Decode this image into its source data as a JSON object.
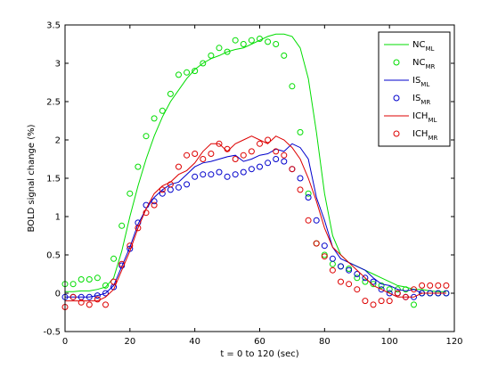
{
  "chart_data": {
    "type": "line",
    "xlabel": "t = 0 to 120 (sec)",
    "ylabel": "BOLD signal change (%)",
    "xlim": [
      0,
      120
    ],
    "ylim": [
      -0.5,
      3.5
    ],
    "x_ticks": [
      "0",
      "20",
      "40",
      "60",
      "80",
      "100",
      "120"
    ],
    "x_tick_values": [
      0,
      20,
      40,
      60,
      80,
      100,
      120
    ],
    "y_ticks": [
      "-0.5",
      "0",
      "0.5",
      "1",
      "1.5",
      "2",
      "2.5",
      "3",
      "3.5"
    ],
    "y_tick_values": [
      -0.5,
      0,
      0.5,
      1,
      1.5,
      2,
      2.5,
      3,
      3.5
    ],
    "grid": false,
    "legend_position": "top-right",
    "x": [
      0,
      2.5,
      5,
      7.5,
      10,
      12.5,
      15,
      17.5,
      20,
      22.5,
      25,
      27.5,
      30,
      32.5,
      35,
      37.5,
      40,
      42.5,
      45,
      47.5,
      50,
      52.5,
      55,
      57.5,
      60,
      62.5,
      65,
      67.5,
      70,
      72.5,
      75,
      77.5,
      80,
      82.5,
      85,
      87.5,
      90,
      92.5,
      95,
      97.5,
      100,
      102.5,
      105,
      107.5,
      110,
      112.5,
      115,
      117.5
    ],
    "series": [
      {
        "name": "NC",
        "subscript": "ML",
        "style": "line",
        "color": "#00dd00",
        "values": [
          0.02,
          0.02,
          0.03,
          0.03,
          0.05,
          0.08,
          0.2,
          0.55,
          1.0,
          1.4,
          1.75,
          2.05,
          2.3,
          2.5,
          2.65,
          2.8,
          2.92,
          3.0,
          3.06,
          3.1,
          3.15,
          3.18,
          3.2,
          3.25,
          3.3,
          3.35,
          3.38,
          3.38,
          3.35,
          3.2,
          2.8,
          2.1,
          1.3,
          0.75,
          0.5,
          0.4,
          0.35,
          0.3,
          0.25,
          0.2,
          0.15,
          0.1,
          0.08,
          0.05,
          0.05,
          0.03,
          0.02,
          0.02
        ]
      },
      {
        "name": "NC",
        "subscript": "MR",
        "style": "marker",
        "color": "#00dd00",
        "values": [
          0.12,
          0.12,
          0.18,
          0.18,
          0.2,
          0.1,
          0.45,
          0.88,
          1.3,
          1.65,
          2.05,
          2.28,
          2.38,
          2.6,
          2.85,
          2.88,
          2.9,
          3.0,
          3.1,
          3.2,
          3.15,
          3.3,
          3.25,
          3.3,
          3.32,
          3.28,
          3.25,
          3.1,
          2.7,
          2.1,
          1.3,
          0.65,
          0.5,
          0.38,
          0.35,
          0.32,
          0.2,
          0.15,
          0.12,
          0.1,
          0.05,
          0.05,
          0.05,
          -0.15,
          0.0,
          0.0,
          0.0,
          0.0
        ]
      },
      {
        "name": "IS",
        "subscript": "ML",
        "style": "line",
        "color": "#0000cc",
        "values": [
          -0.05,
          -0.05,
          -0.05,
          -0.05,
          -0.03,
          0.0,
          0.1,
          0.35,
          0.6,
          0.9,
          1.1,
          1.25,
          1.35,
          1.42,
          1.45,
          1.55,
          1.65,
          1.7,
          1.72,
          1.75,
          1.78,
          1.8,
          1.72,
          1.75,
          1.8,
          1.82,
          1.88,
          1.85,
          1.95,
          1.9,
          1.75,
          1.25,
          0.95,
          0.6,
          0.45,
          0.4,
          0.35,
          0.3,
          0.2,
          0.12,
          0.1,
          0.05,
          0.03,
          0.05,
          0.0,
          0.0,
          0.0,
          0.0
        ]
      },
      {
        "name": "IS",
        "subscript": "MR",
        "style": "marker",
        "color": "#0000cc",
        "values": [
          -0.05,
          -0.05,
          -0.05,
          -0.05,
          -0.03,
          0.0,
          0.08,
          0.36,
          0.58,
          0.92,
          1.15,
          1.2,
          1.3,
          1.35,
          1.38,
          1.42,
          1.52,
          1.55,
          1.55,
          1.58,
          1.52,
          1.55,
          1.58,
          1.62,
          1.65,
          1.7,
          1.75,
          1.72,
          1.62,
          1.5,
          1.25,
          0.95,
          0.62,
          0.45,
          0.35,
          0.3,
          0.25,
          0.2,
          0.15,
          0.05,
          0.0,
          0.0,
          -0.05,
          -0.05,
          0.0,
          0.0,
          0.0,
          0.0
        ]
      },
      {
        "name": "ICH",
        "subscript": "ML",
        "style": "line",
        "color": "#dd0000",
        "values": [
          -0.1,
          -0.1,
          -0.1,
          -0.1,
          -0.1,
          -0.05,
          0.05,
          0.3,
          0.55,
          0.85,
          1.1,
          1.3,
          1.4,
          1.45,
          1.55,
          1.6,
          1.7,
          1.85,
          1.95,
          1.95,
          1.85,
          1.95,
          2.0,
          2.05,
          2.0,
          1.95,
          2.05,
          2.0,
          1.9,
          1.75,
          1.5,
          1.2,
          0.85,
          0.6,
          0.5,
          0.4,
          0.3,
          0.2,
          0.1,
          0.05,
          0.0,
          -0.05,
          -0.05,
          -0.05,
          0.0,
          0.0,
          0.0,
          0.0
        ]
      },
      {
        "name": "ICH",
        "subscript": "MR",
        "style": "marker",
        "color": "#dd0000",
        "values": [
          -0.18,
          -0.05,
          -0.12,
          -0.15,
          -0.08,
          -0.15,
          0.15,
          0.38,
          0.62,
          0.85,
          1.05,
          1.15,
          1.35,
          1.42,
          1.65,
          1.8,
          1.82,
          1.75,
          1.82,
          1.95,
          1.88,
          1.75,
          1.8,
          1.85,
          1.95,
          2.0,
          1.85,
          1.8,
          1.62,
          1.35,
          0.95,
          0.65,
          0.48,
          0.3,
          0.15,
          0.12,
          0.05,
          -0.1,
          -0.15,
          -0.1,
          -0.1,
          0.0,
          -0.05,
          0.05,
          0.1,
          0.1,
          0.1,
          0.1
        ]
      }
    ]
  }
}
